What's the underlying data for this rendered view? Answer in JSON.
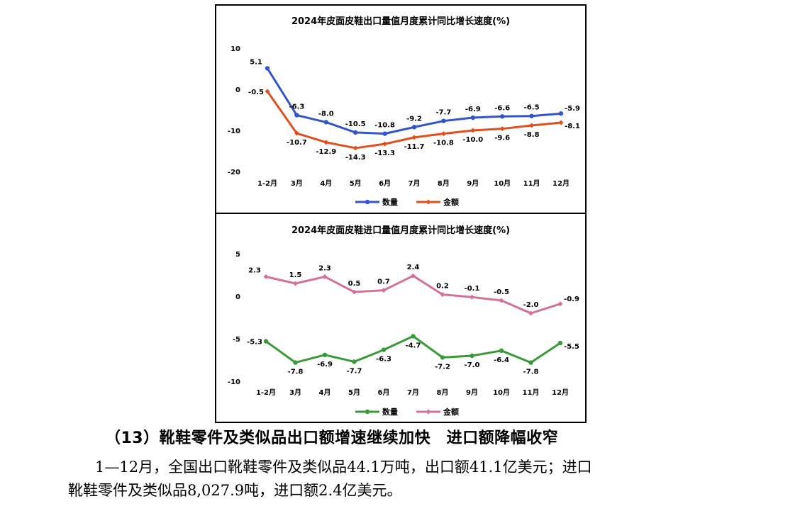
{
  "charts": {
    "export": {
      "title": "2024年皮面皮鞋出口量值月度累计同比增长速度(%)",
      "legend": [
        "数量",
        "金额"
      ]
    },
    "import": {
      "title": "2024年皮面皮鞋进口量值月度累计同比增长速度(%)",
      "legend": [
        "数量",
        "金额"
      ]
    }
  },
  "chart_data": [
    {
      "type": "line",
      "title": "2024年皮面皮鞋出口量值月度累计同比增长速度(%)",
      "categories": [
        "1-2月",
        "3月",
        "4月",
        "5月",
        "6月",
        "7月",
        "8月",
        "9月",
        "10月",
        "11月",
        "12月"
      ],
      "ylim": [
        -20,
        10
      ],
      "yticks": [
        10,
        0,
        -10,
        -20
      ],
      "series": [
        {
          "name": "数量",
          "color": "#3355cc",
          "values": [
            5.1,
            -6.3,
            -8.0,
            -10.5,
            -10.8,
            -9.2,
            -7.7,
            -6.9,
            -6.6,
            -6.5,
            -5.9
          ]
        },
        {
          "name": "金额",
          "color": "#e0501e",
          "values": [
            -0.5,
            -10.7,
            -12.9,
            -14.3,
            -13.3,
            -11.7,
            -10.8,
            -10.0,
            -9.6,
            -8.8,
            -8.1
          ]
        }
      ],
      "legend": "bottom",
      "grid": false
    },
    {
      "type": "line",
      "title": "2024年皮面皮鞋进口量值月度累计同比增长速度(%)",
      "categories": [
        "1-2月",
        "3月",
        "4月",
        "5月",
        "6月",
        "7月",
        "8月",
        "9月",
        "10月",
        "11月",
        "12月"
      ],
      "ylim": [
        -10,
        5
      ],
      "yticks": [
        5,
        0,
        -5,
        -10
      ],
      "series": [
        {
          "name": "数量",
          "color": "#3a9a3a",
          "values": [
            -5.3,
            -7.8,
            -6.9,
            -7.7,
            -6.3,
            -4.7,
            -7.2,
            -7.0,
            -6.4,
            -7.8,
            -5.5
          ]
        },
        {
          "name": "金额",
          "color": "#d4709a",
          "values": [
            2.3,
            1.5,
            2.3,
            0.5,
            0.7,
            2.4,
            0.2,
            -0.1,
            -0.5,
            -2.0,
            -0.9
          ]
        }
      ],
      "legend": "bottom",
      "grid": false
    }
  ],
  "text": {
    "heading": "（13）靴鞋零件及类似品出口额增速继续加快　进口额降幅收窄",
    "line1": "1—12月，全国出口靴鞋零件及类似品44.1万吨，出口额41.1亿美元；进口",
    "line2": "靴鞋零件及类似品8,027.9吨，进口额2.4亿美元。"
  }
}
